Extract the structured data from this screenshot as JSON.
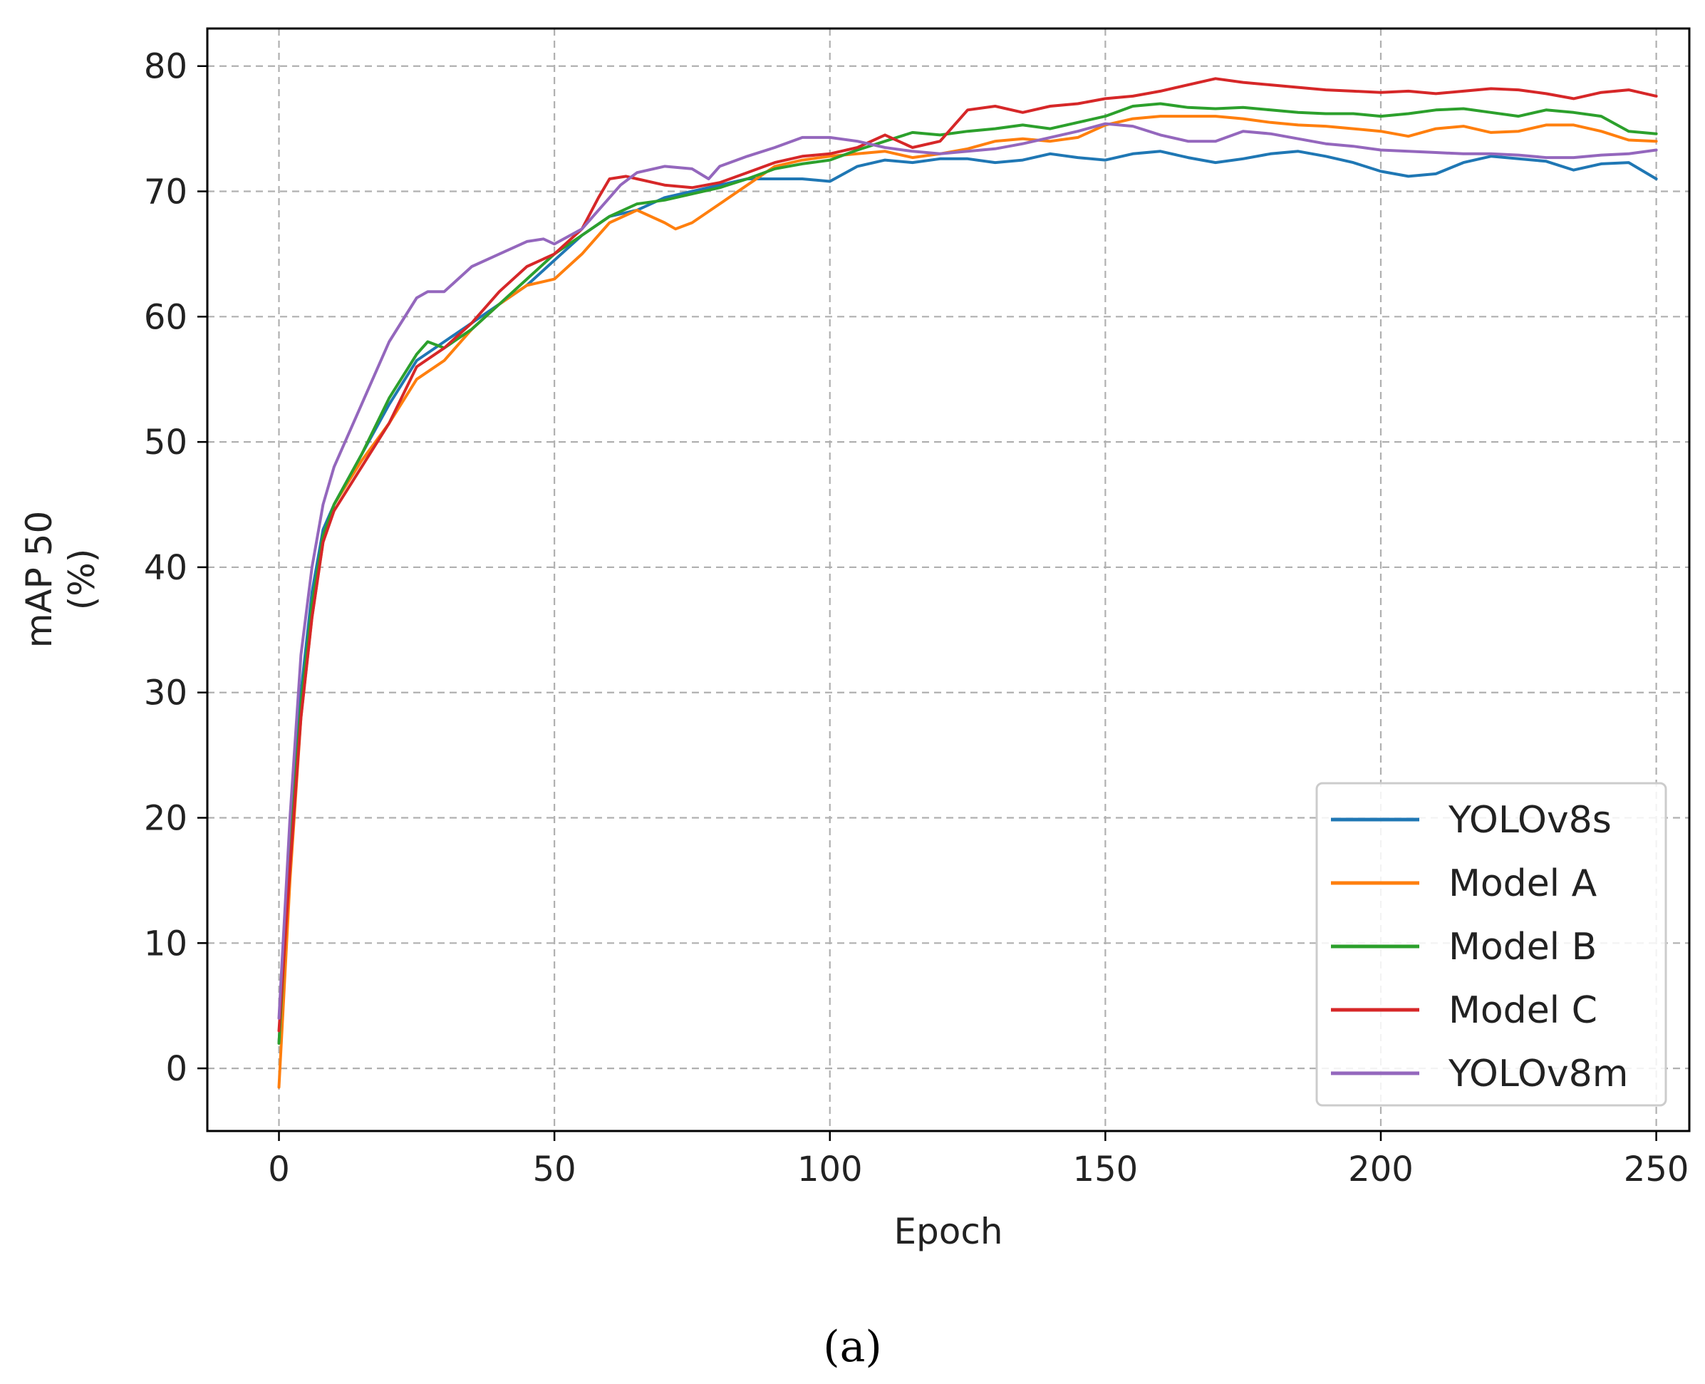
{
  "chart_data": {
    "type": "line",
    "xlabel": "Epoch",
    "ylabel_line1": "mAP 50",
    "ylabel_line2": "(%)",
    "xlim": [
      -13,
      256
    ],
    "ylim": [
      -5,
      83
    ],
    "xticks": [
      0,
      50,
      100,
      150,
      200,
      250
    ],
    "yticks": [
      0,
      10,
      20,
      30,
      40,
      50,
      60,
      70,
      80
    ],
    "grid": true,
    "legend_position": "lower-right",
    "series": [
      {
        "name": "YOLOv8s",
        "color": "#1f77b4",
        "points": [
          [
            0,
            2
          ],
          [
            2,
            18
          ],
          [
            4,
            30
          ],
          [
            6,
            38
          ],
          [
            8,
            43
          ],
          [
            10,
            45
          ],
          [
            15,
            49
          ],
          [
            20,
            53
          ],
          [
            25,
            56.5
          ],
          [
            30,
            58
          ],
          [
            35,
            59.5
          ],
          [
            40,
            61
          ],
          [
            45,
            62.5
          ],
          [
            50,
            64.5
          ],
          [
            55,
            66.5
          ],
          [
            60,
            68
          ],
          [
            65,
            68.5
          ],
          [
            70,
            69.5
          ],
          [
            75,
            70
          ],
          [
            80,
            70.5
          ],
          [
            85,
            71
          ],
          [
            90,
            71
          ],
          [
            95,
            71
          ],
          [
            100,
            70.8
          ],
          [
            105,
            72
          ],
          [
            110,
            72.5
          ],
          [
            115,
            72.3
          ],
          [
            120,
            72.6
          ],
          [
            125,
            72.6
          ],
          [
            130,
            72.3
          ],
          [
            135,
            72.5
          ],
          [
            140,
            73
          ],
          [
            145,
            72.7
          ],
          [
            150,
            72.5
          ],
          [
            155,
            73
          ],
          [
            160,
            73.2
          ],
          [
            165,
            72.7
          ],
          [
            170,
            72.3
          ],
          [
            175,
            72.6
          ],
          [
            180,
            73
          ],
          [
            185,
            73.2
          ],
          [
            190,
            72.8
          ],
          [
            195,
            72.3
          ],
          [
            200,
            71.6
          ],
          [
            205,
            71.2
          ],
          [
            210,
            71.4
          ],
          [
            215,
            72.3
          ],
          [
            220,
            72.8
          ],
          [
            225,
            72.6
          ],
          [
            230,
            72.4
          ],
          [
            235,
            71.7
          ],
          [
            240,
            72.2
          ],
          [
            245,
            72.3
          ],
          [
            250,
            71
          ]
        ]
      },
      {
        "name": "Model A",
        "color": "#ff7f0e",
        "points": [
          [
            0,
            -1.5
          ],
          [
            2,
            15
          ],
          [
            4,
            28
          ],
          [
            6,
            36
          ],
          [
            8,
            42
          ],
          [
            10,
            45
          ],
          [
            15,
            48.5
          ],
          [
            20,
            51.5
          ],
          [
            25,
            55
          ],
          [
            30,
            56.5
          ],
          [
            35,
            59
          ],
          [
            40,
            61
          ],
          [
            45,
            62.5
          ],
          [
            50,
            63
          ],
          [
            55,
            65
          ],
          [
            60,
            67.5
          ],
          [
            65,
            68.5
          ],
          [
            70,
            67.5
          ],
          [
            72,
            67
          ],
          [
            75,
            67.5
          ],
          [
            80,
            69
          ],
          [
            85,
            70.5
          ],
          [
            90,
            72
          ],
          [
            95,
            72.5
          ],
          [
            100,
            72.8
          ],
          [
            105,
            73
          ],
          [
            110,
            73.2
          ],
          [
            115,
            72.7
          ],
          [
            120,
            73
          ],
          [
            125,
            73.4
          ],
          [
            130,
            74
          ],
          [
            135,
            74.2
          ],
          [
            140,
            74
          ],
          [
            145,
            74.3
          ],
          [
            150,
            75.3
          ],
          [
            155,
            75.8
          ],
          [
            160,
            76
          ],
          [
            165,
            76
          ],
          [
            170,
            76
          ],
          [
            175,
            75.8
          ],
          [
            180,
            75.5
          ],
          [
            185,
            75.3
          ],
          [
            190,
            75.2
          ],
          [
            195,
            75
          ],
          [
            200,
            74.8
          ],
          [
            205,
            74.4
          ],
          [
            210,
            75
          ],
          [
            215,
            75.2
          ],
          [
            220,
            74.7
          ],
          [
            225,
            74.8
          ],
          [
            230,
            75.3
          ],
          [
            235,
            75.3
          ],
          [
            240,
            74.8
          ],
          [
            245,
            74.1
          ],
          [
            250,
            74
          ]
        ]
      },
      {
        "name": "Model B",
        "color": "#2ca02c",
        "points": [
          [
            0,
            2
          ],
          [
            2,
            17
          ],
          [
            4,
            29
          ],
          [
            6,
            37
          ],
          [
            8,
            42.5
          ],
          [
            10,
            45
          ],
          [
            15,
            49
          ],
          [
            20,
            53.5
          ],
          [
            25,
            57
          ],
          [
            27,
            58
          ],
          [
            30,
            57.5
          ],
          [
            35,
            59
          ],
          [
            40,
            61
          ],
          [
            45,
            63
          ],
          [
            50,
            65
          ],
          [
            55,
            66.5
          ],
          [
            60,
            68
          ],
          [
            65,
            69
          ],
          [
            70,
            69.3
          ],
          [
            75,
            69.8
          ],
          [
            80,
            70.3
          ],
          [
            85,
            71
          ],
          [
            90,
            71.8
          ],
          [
            95,
            72.2
          ],
          [
            100,
            72.5
          ],
          [
            105,
            73.3
          ],
          [
            110,
            74
          ],
          [
            115,
            74.7
          ],
          [
            120,
            74.5
          ],
          [
            125,
            74.8
          ],
          [
            130,
            75
          ],
          [
            135,
            75.3
          ],
          [
            140,
            75
          ],
          [
            145,
            75.5
          ],
          [
            150,
            76
          ],
          [
            155,
            76.8
          ],
          [
            160,
            77
          ],
          [
            165,
            76.7
          ],
          [
            170,
            76.6
          ],
          [
            175,
            76.7
          ],
          [
            180,
            76.5
          ],
          [
            185,
            76.3
          ],
          [
            190,
            76.2
          ],
          [
            195,
            76.2
          ],
          [
            200,
            76
          ],
          [
            205,
            76.2
          ],
          [
            210,
            76.5
          ],
          [
            215,
            76.6
          ],
          [
            220,
            76.3
          ],
          [
            225,
            76
          ],
          [
            230,
            76.5
          ],
          [
            235,
            76.3
          ],
          [
            240,
            76
          ],
          [
            245,
            74.8
          ],
          [
            250,
            74.6
          ]
        ]
      },
      {
        "name": "Model C",
        "color": "#d62728",
        "points": [
          [
            0,
            3
          ],
          [
            2,
            16
          ],
          [
            4,
            28
          ],
          [
            6,
            36
          ],
          [
            8,
            42
          ],
          [
            10,
            44.5
          ],
          [
            15,
            48
          ],
          [
            20,
            51.5
          ],
          [
            25,
            56
          ],
          [
            30,
            57.5
          ],
          [
            35,
            59.5
          ],
          [
            40,
            62
          ],
          [
            45,
            64
          ],
          [
            50,
            65
          ],
          [
            55,
            67
          ],
          [
            58,
            69.5
          ],
          [
            60,
            71
          ],
          [
            63,
            71.2
          ],
          [
            65,
            71
          ],
          [
            70,
            70.5
          ],
          [
            75,
            70.3
          ],
          [
            80,
            70.7
          ],
          [
            85,
            71.5
          ],
          [
            90,
            72.3
          ],
          [
            95,
            72.8
          ],
          [
            100,
            73
          ],
          [
            105,
            73.5
          ],
          [
            110,
            74.5
          ],
          [
            115,
            73.5
          ],
          [
            120,
            74
          ],
          [
            125,
            76.5
          ],
          [
            130,
            76.8
          ],
          [
            135,
            76.3
          ],
          [
            140,
            76.8
          ],
          [
            145,
            77
          ],
          [
            150,
            77.4
          ],
          [
            155,
            77.6
          ],
          [
            160,
            78
          ],
          [
            165,
            78.5
          ],
          [
            170,
            79
          ],
          [
            175,
            78.7
          ],
          [
            180,
            78.5
          ],
          [
            185,
            78.3
          ],
          [
            190,
            78.1
          ],
          [
            195,
            78
          ],
          [
            200,
            77.9
          ],
          [
            205,
            78
          ],
          [
            210,
            77.8
          ],
          [
            215,
            78
          ],
          [
            220,
            78.2
          ],
          [
            225,
            78.1
          ],
          [
            230,
            77.8
          ],
          [
            235,
            77.4
          ],
          [
            240,
            77.9
          ],
          [
            245,
            78.1
          ],
          [
            250,
            77.6
          ]
        ]
      },
      {
        "name": "YOLOv8m",
        "color": "#9467bd",
        "points": [
          [
            0,
            4
          ],
          [
            2,
            20
          ],
          [
            4,
            33
          ],
          [
            6,
            40
          ],
          [
            8,
            45
          ],
          [
            10,
            48
          ],
          [
            15,
            53
          ],
          [
            20,
            58
          ],
          [
            25,
            61.5
          ],
          [
            27,
            62
          ],
          [
            30,
            62
          ],
          [
            35,
            64
          ],
          [
            40,
            65
          ],
          [
            45,
            66
          ],
          [
            48,
            66.2
          ],
          [
            50,
            65.8
          ],
          [
            55,
            67
          ],
          [
            60,
            69.5
          ],
          [
            62,
            70.5
          ],
          [
            65,
            71.5
          ],
          [
            70,
            72
          ],
          [
            75,
            71.8
          ],
          [
            78,
            71
          ],
          [
            80,
            72
          ],
          [
            85,
            72.8
          ],
          [
            90,
            73.5
          ],
          [
            95,
            74.3
          ],
          [
            100,
            74.3
          ],
          [
            105,
            74
          ],
          [
            110,
            73.5
          ],
          [
            115,
            73.2
          ],
          [
            120,
            73
          ],
          [
            125,
            73.2
          ],
          [
            130,
            73.4
          ],
          [
            135,
            73.8
          ],
          [
            140,
            74.3
          ],
          [
            145,
            74.8
          ],
          [
            150,
            75.4
          ],
          [
            155,
            75.2
          ],
          [
            160,
            74.5
          ],
          [
            165,
            74
          ],
          [
            170,
            74
          ],
          [
            175,
            74.8
          ],
          [
            180,
            74.6
          ],
          [
            185,
            74.2
          ],
          [
            190,
            73.8
          ],
          [
            195,
            73.6
          ],
          [
            200,
            73.3
          ],
          [
            205,
            73.2
          ],
          [
            210,
            73.1
          ],
          [
            215,
            73
          ],
          [
            220,
            73
          ],
          [
            225,
            72.9
          ],
          [
            230,
            72.7
          ],
          [
            235,
            72.7
          ],
          [
            240,
            72.9
          ],
          [
            245,
            73
          ],
          [
            250,
            73.3
          ]
        ]
      }
    ]
  },
  "caption": "(a)"
}
